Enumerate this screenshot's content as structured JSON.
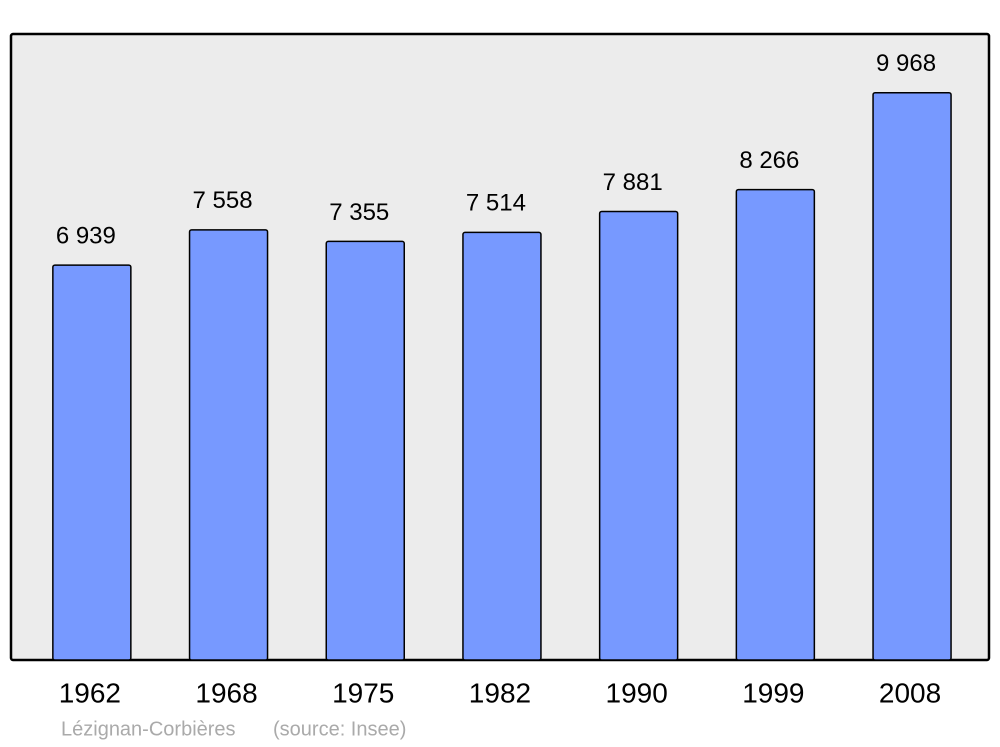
{
  "chart_data": {
    "type": "bar",
    "title": "Lézignan-Corbières",
    "source": "(source: Insee)",
    "categories": [
      "1962",
      "1968",
      "1975",
      "1982",
      "1990",
      "1999",
      "2008"
    ],
    "values": [
      6939,
      7558,
      7355,
      7514,
      7881,
      8266,
      9968
    ],
    "value_labels": [
      "6 939",
      "7 558",
      "7 355",
      "7 514",
      "7 881",
      "8 266",
      "9 968"
    ],
    "color": "#7799ff",
    "ylim": [
      0,
      11000
    ]
  }
}
